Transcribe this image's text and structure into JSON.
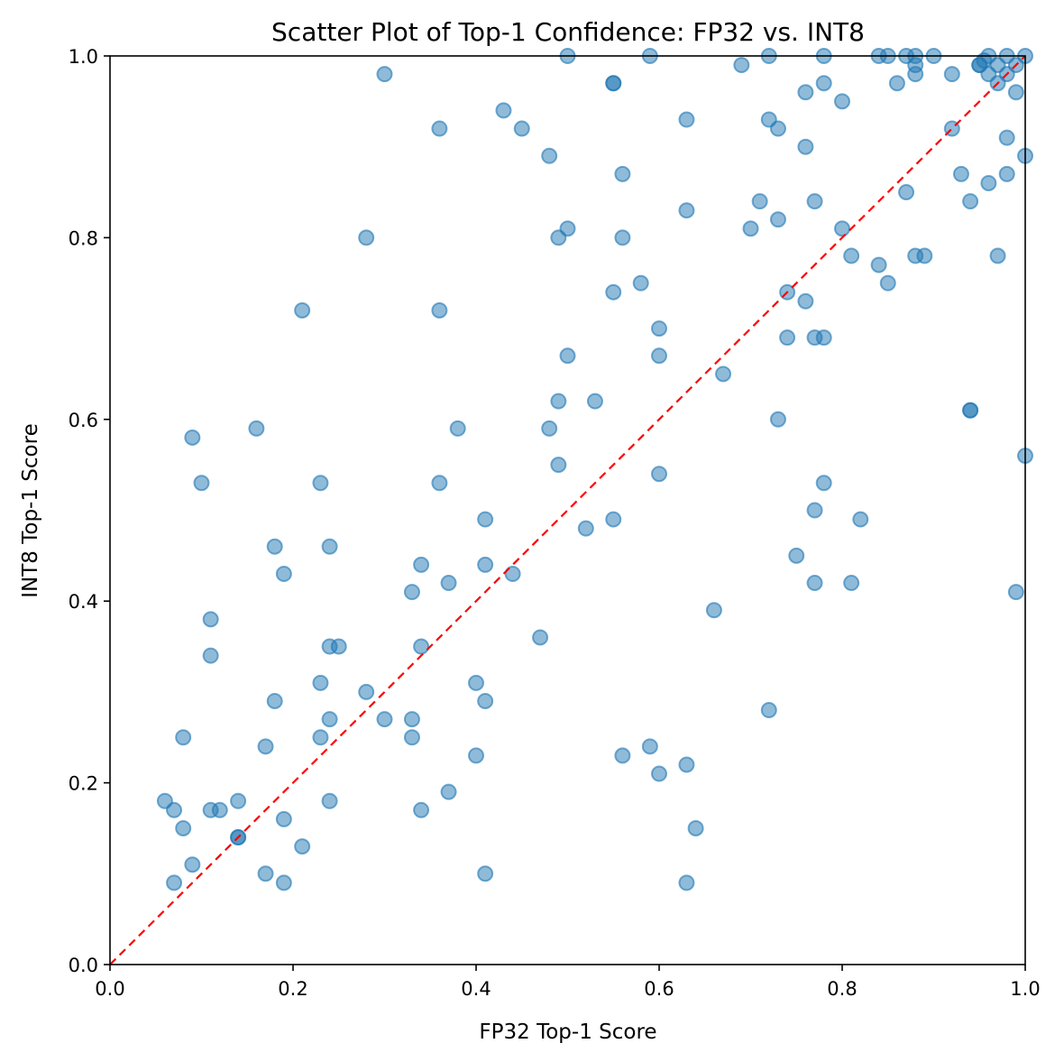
{
  "chart_data": {
    "type": "scatter",
    "title": "Scatter Plot of Top-1 Confidence: FP32 vs. INT8",
    "xlabel": "FP32 Top-1 Score",
    "ylabel": "INT8 Top-1 Score",
    "xlim": [
      0.0,
      1.0
    ],
    "ylim": [
      0.0,
      1.0
    ],
    "xticks": [
      "0.0",
      "0.2",
      "0.4",
      "0.6",
      "0.8",
      "1.0"
    ],
    "yticks": [
      "0.0",
      "0.2",
      "0.4",
      "0.6",
      "0.8",
      "1.0"
    ],
    "grid": false,
    "point_color": "#1f77b4",
    "reference_line": {
      "from": [
        0.0,
        0.0
      ],
      "to": [
        1.0,
        1.0
      ],
      "color": "#ff0000",
      "style": "dashed"
    },
    "points": [
      [
        0.3,
        0.98
      ],
      [
        0.5,
        1.0
      ],
      [
        0.59,
        1.0
      ],
      [
        0.55,
        0.97
      ],
      [
        0.55,
        0.97
      ],
      [
        0.69,
        0.99
      ],
      [
        0.72,
        1.0
      ],
      [
        0.78,
        1.0
      ],
      [
        0.84,
        1.0
      ],
      [
        0.85,
        1.0
      ],
      [
        0.87,
        1.0
      ],
      [
        0.88,
        0.99
      ],
      [
        0.88,
        1.0
      ],
      [
        0.9,
        1.0
      ],
      [
        0.95,
        0.99
      ],
      [
        0.96,
        1.0
      ],
      [
        0.97,
        0.99
      ],
      [
        0.98,
        1.0
      ],
      [
        0.99,
        0.99
      ],
      [
        1.0,
        1.0
      ],
      [
        0.96,
        0.98
      ],
      [
        0.98,
        0.98
      ],
      [
        0.97,
        0.97
      ],
      [
        0.99,
        0.96
      ],
      [
        0.86,
        0.97
      ],
      [
        0.88,
        0.98
      ],
      [
        0.92,
        0.98
      ],
      [
        0.78,
        0.97
      ],
      [
        0.76,
        0.96
      ],
      [
        0.8,
        0.95
      ],
      [
        0.95,
        0.99
      ],
      [
        0.955,
        0.995
      ],
      [
        0.43,
        0.94
      ],
      [
        0.45,
        0.92
      ],
      [
        0.36,
        0.92
      ],
      [
        0.48,
        0.89
      ],
      [
        0.56,
        0.87
      ],
      [
        0.63,
        0.93
      ],
      [
        0.72,
        0.93
      ],
      [
        0.73,
        0.92
      ],
      [
        0.76,
        0.9
      ],
      [
        0.92,
        0.92
      ],
      [
        0.98,
        0.91
      ],
      [
        1.0,
        0.89
      ],
      [
        0.98,
        0.87
      ],
      [
        0.93,
        0.87
      ],
      [
        0.94,
        0.84
      ],
      [
        0.96,
        0.86
      ],
      [
        0.87,
        0.85
      ],
      [
        0.71,
        0.84
      ],
      [
        0.77,
        0.84
      ],
      [
        0.63,
        0.83
      ],
      [
        0.73,
        0.82
      ],
      [
        0.8,
        0.81
      ],
      [
        0.7,
        0.81
      ],
      [
        0.49,
        0.8
      ],
      [
        0.5,
        0.81
      ],
      [
        0.56,
        0.8
      ],
      [
        0.28,
        0.8
      ],
      [
        0.81,
        0.78
      ],
      [
        0.88,
        0.78
      ],
      [
        0.89,
        0.78
      ],
      [
        0.97,
        0.78
      ],
      [
        0.84,
        0.77
      ],
      [
        0.85,
        0.75
      ],
      [
        0.55,
        0.74
      ],
      [
        0.58,
        0.75
      ],
      [
        0.74,
        0.74
      ],
      [
        0.76,
        0.73
      ],
      [
        0.36,
        0.72
      ],
      [
        0.21,
        0.72
      ],
      [
        0.6,
        0.7
      ],
      [
        0.74,
        0.69
      ],
      [
        0.77,
        0.69
      ],
      [
        0.78,
        0.69
      ],
      [
        0.5,
        0.67
      ],
      [
        0.6,
        0.67
      ],
      [
        0.67,
        0.65
      ],
      [
        0.53,
        0.62
      ],
      [
        0.49,
        0.62
      ],
      [
        0.73,
        0.6
      ],
      [
        0.94,
        0.61
      ],
      [
        0.94,
        0.61
      ],
      [
        0.38,
        0.59
      ],
      [
        0.48,
        0.59
      ],
      [
        0.16,
        0.59
      ],
      [
        0.09,
        0.58
      ],
      [
        1.0,
        0.56
      ],
      [
        0.49,
        0.55
      ],
      [
        0.6,
        0.54
      ],
      [
        0.36,
        0.53
      ],
      [
        0.23,
        0.53
      ],
      [
        0.1,
        0.53
      ],
      [
        0.78,
        0.53
      ],
      [
        0.41,
        0.49
      ],
      [
        0.55,
        0.49
      ],
      [
        0.52,
        0.48
      ],
      [
        0.77,
        0.5
      ],
      [
        0.82,
        0.49
      ],
      [
        0.18,
        0.46
      ],
      [
        0.24,
        0.46
      ],
      [
        0.34,
        0.44
      ],
      [
        0.41,
        0.44
      ],
      [
        0.44,
        0.43
      ],
      [
        0.19,
        0.43
      ],
      [
        0.37,
        0.42
      ],
      [
        0.75,
        0.45
      ],
      [
        0.77,
        0.42
      ],
      [
        0.81,
        0.42
      ],
      [
        0.99,
        0.41
      ],
      [
        0.33,
        0.41
      ],
      [
        0.66,
        0.39
      ],
      [
        0.11,
        0.38
      ],
      [
        0.11,
        0.34
      ],
      [
        0.24,
        0.35
      ],
      [
        0.25,
        0.35
      ],
      [
        0.34,
        0.35
      ],
      [
        0.47,
        0.36
      ],
      [
        0.4,
        0.31
      ],
      [
        0.23,
        0.31
      ],
      [
        0.28,
        0.3
      ],
      [
        0.18,
        0.29
      ],
      [
        0.3,
        0.27
      ],
      [
        0.33,
        0.27
      ],
      [
        0.24,
        0.27
      ],
      [
        0.41,
        0.29
      ],
      [
        0.72,
        0.28
      ],
      [
        0.08,
        0.25
      ],
      [
        0.17,
        0.24
      ],
      [
        0.23,
        0.25
      ],
      [
        0.33,
        0.25
      ],
      [
        0.59,
        0.24
      ],
      [
        0.4,
        0.23
      ],
      [
        0.56,
        0.23
      ],
      [
        0.63,
        0.22
      ],
      [
        0.6,
        0.21
      ],
      [
        0.06,
        0.18
      ],
      [
        0.07,
        0.17
      ],
      [
        0.11,
        0.17
      ],
      [
        0.12,
        0.17
      ],
      [
        0.14,
        0.18
      ],
      [
        0.24,
        0.18
      ],
      [
        0.37,
        0.19
      ],
      [
        0.19,
        0.16
      ],
      [
        0.34,
        0.17
      ],
      [
        0.08,
        0.15
      ],
      [
        0.14,
        0.14
      ],
      [
        0.14,
        0.14
      ],
      [
        0.64,
        0.15
      ],
      [
        0.21,
        0.13
      ],
      [
        0.09,
        0.11
      ],
      [
        0.07,
        0.09
      ],
      [
        0.17,
        0.1
      ],
      [
        0.19,
        0.09
      ],
      [
        0.41,
        0.1
      ],
      [
        0.63,
        0.09
      ]
    ]
  }
}
